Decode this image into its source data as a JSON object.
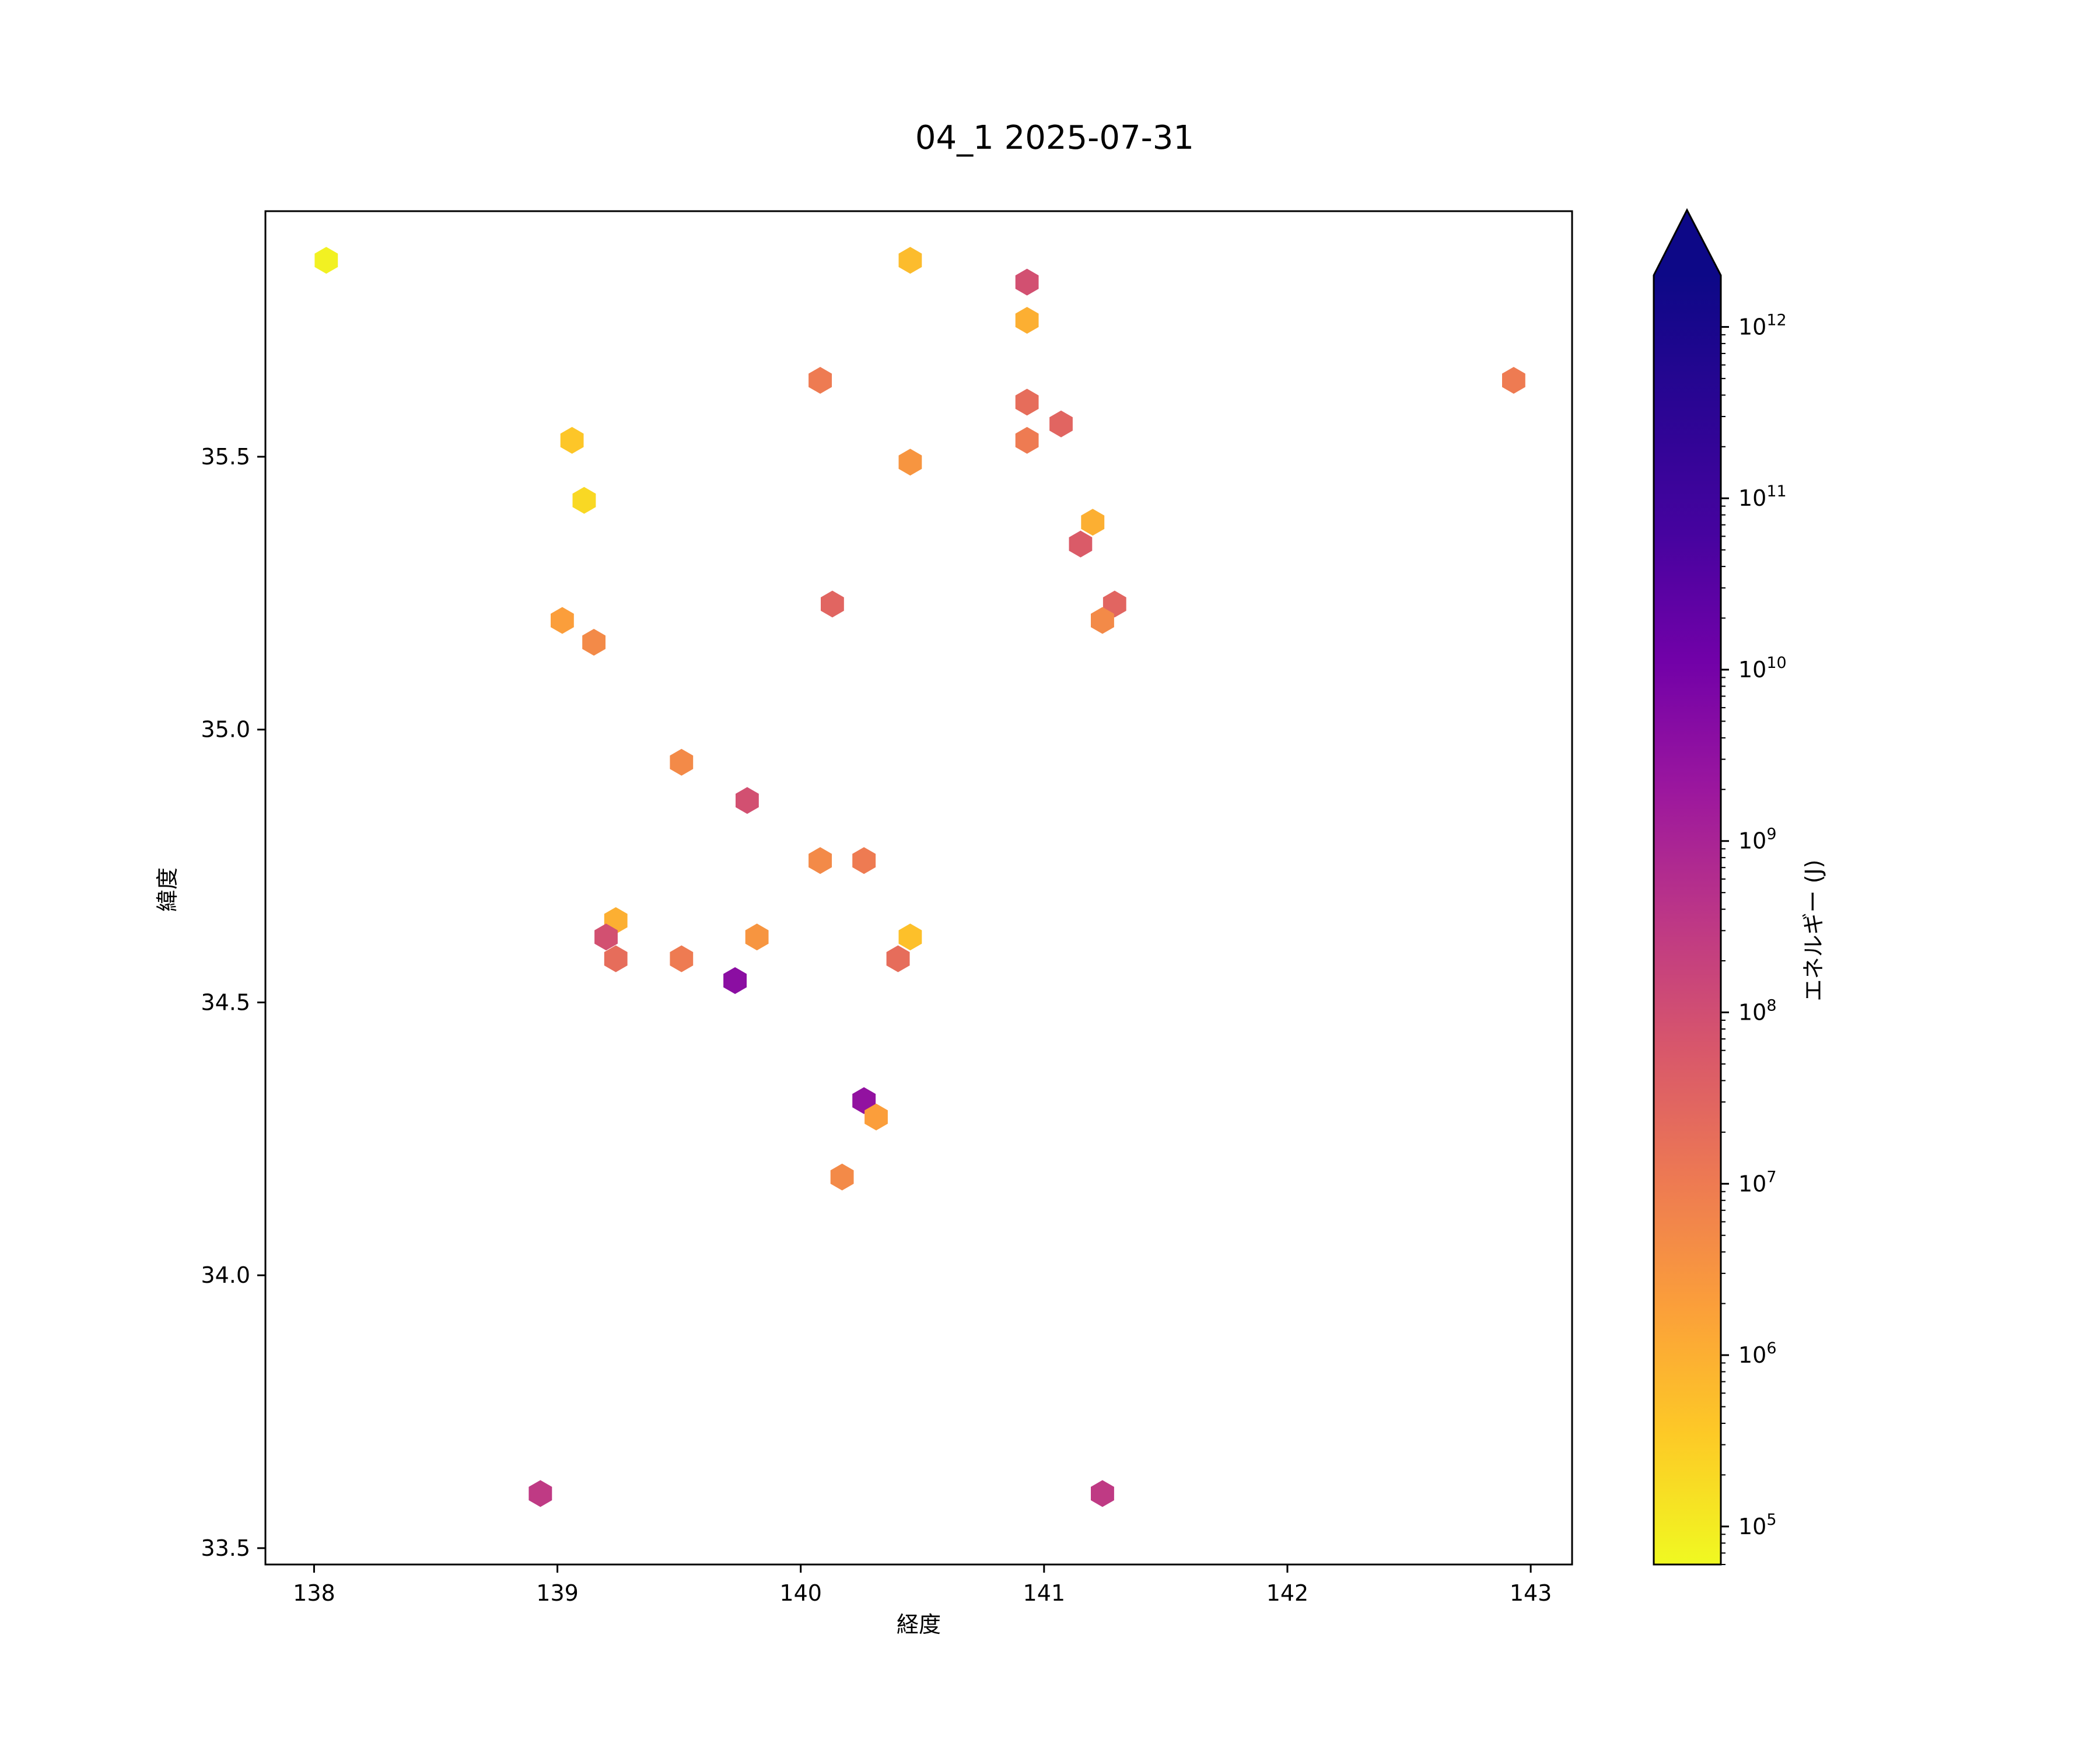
{
  "chart_data": {
    "type": "scatter",
    "title": "04_1 2025-07-31",
    "xlabel": "経度",
    "ylabel": "緯度",
    "xlim": [
      137.8,
      143.17
    ],
    "ylim": [
      33.47,
      35.95
    ],
    "xticks": [
      "138",
      "139",
      "140",
      "141",
      "142",
      "143"
    ],
    "yticks": [
      "33.5",
      "34.0",
      "34.5",
      "35.0",
      "35.5"
    ],
    "marker": "hexagon",
    "grid": false,
    "colorbar": {
      "label": "エネルギー (J)",
      "scale": "log",
      "colormap": "plasma_r",
      "range": [
        60000,
        2000000000000.0
      ],
      "extend": "max",
      "ticks": [
        {
          "base": "10",
          "exp": "5"
        },
        {
          "base": "10",
          "exp": "6"
        },
        {
          "base": "10",
          "exp": "7"
        },
        {
          "base": "10",
          "exp": "8"
        },
        {
          "base": "10",
          "exp": "9"
        },
        {
          "base": "10",
          "exp": "10"
        },
        {
          "base": "10",
          "exp": "11"
        },
        {
          "base": "10",
          "exp": "12"
        }
      ]
    },
    "points": [
      {
        "x": 138.05,
        "y": 35.86,
        "energy": 80000
      },
      {
        "x": 140.45,
        "y": 35.86,
        "energy": 600000
      },
      {
        "x": 140.93,
        "y": 35.82,
        "energy": 90000000
      },
      {
        "x": 140.93,
        "y": 35.75,
        "energy": 1000000
      },
      {
        "x": 140.08,
        "y": 35.64,
        "energy": 10000000
      },
      {
        "x": 142.93,
        "y": 35.64,
        "energy": 10000000
      },
      {
        "x": 140.93,
        "y": 35.6,
        "energy": 20000000
      },
      {
        "x": 141.07,
        "y": 35.56,
        "energy": 30000000
      },
      {
        "x": 139.06,
        "y": 35.53,
        "energy": 400000
      },
      {
        "x": 140.93,
        "y": 35.53,
        "energy": 10000000
      },
      {
        "x": 140.45,
        "y": 35.49,
        "energy": 3000000
      },
      {
        "x": 139.11,
        "y": 35.42,
        "energy": 200000
      },
      {
        "x": 141.2,
        "y": 35.38,
        "energy": 1000000
      },
      {
        "x": 141.15,
        "y": 35.34,
        "energy": 50000000
      },
      {
        "x": 140.13,
        "y": 35.23,
        "energy": 30000000
      },
      {
        "x": 141.29,
        "y": 35.23,
        "energy": 30000000
      },
      {
        "x": 139.02,
        "y": 35.2,
        "energy": 2000000
      },
      {
        "x": 141.24,
        "y": 35.2,
        "energy": 5000000
      },
      {
        "x": 139.15,
        "y": 35.16,
        "energy": 5000000
      },
      {
        "x": 139.51,
        "y": 34.94,
        "energy": 5000000
      },
      {
        "x": 139.78,
        "y": 34.87,
        "energy": 90000000
      },
      {
        "x": 140.08,
        "y": 34.76,
        "energy": 5000000
      },
      {
        "x": 140.26,
        "y": 34.76,
        "energy": 10000000
      },
      {
        "x": 139.24,
        "y": 34.65,
        "energy": 1000000
      },
      {
        "x": 139.2,
        "y": 34.62,
        "energy": 90000000
      },
      {
        "x": 139.82,
        "y": 34.62,
        "energy": 3000000
      },
      {
        "x": 140.45,
        "y": 34.62,
        "energy": 500000
      },
      {
        "x": 139.24,
        "y": 34.58,
        "energy": 20000000
      },
      {
        "x": 139.51,
        "y": 34.58,
        "energy": 10000000
      },
      {
        "x": 140.4,
        "y": 34.58,
        "energy": 20000000
      },
      {
        "x": 139.73,
        "y": 34.54,
        "energy": 4000000000
      },
      {
        "x": 140.26,
        "y": 34.32,
        "energy": 3000000000
      },
      {
        "x": 140.31,
        "y": 34.29,
        "energy": 2000000
      },
      {
        "x": 140.17,
        "y": 34.18,
        "energy": 5000000
      },
      {
        "x": 138.93,
        "y": 33.6,
        "energy": 300000000
      },
      {
        "x": 141.24,
        "y": 33.6,
        "energy": 300000000
      }
    ]
  }
}
